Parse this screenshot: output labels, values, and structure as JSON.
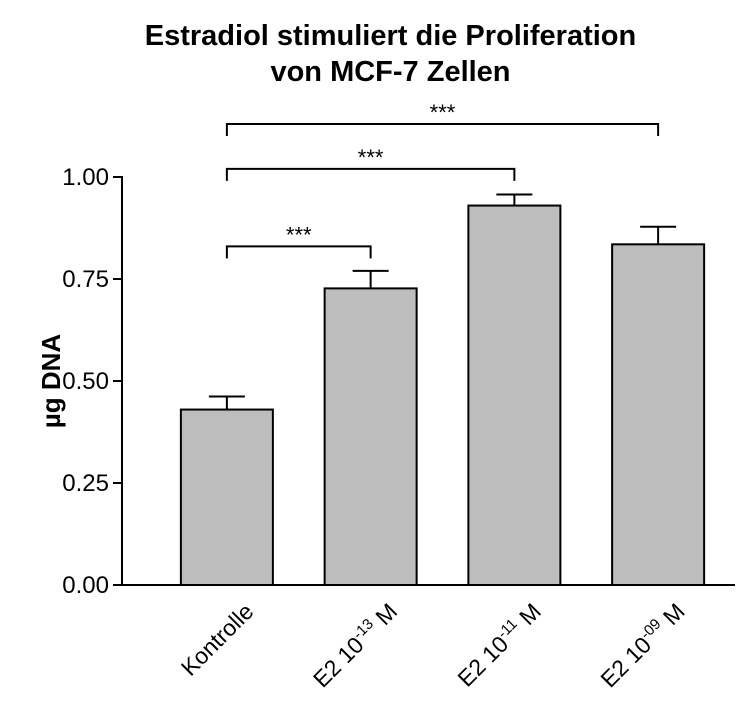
{
  "chart_data": {
    "type": "bar",
    "title_lines": [
      "Estradiol stimuliert die Proliferation",
      "von MCF-7 Zellen"
    ],
    "ylabel": "µg DNA",
    "xlabel": "",
    "ylim": [
      0,
      1.0
    ],
    "yticks": [
      "0.00",
      "0.25",
      "0.50",
      "0.75",
      "1.00"
    ],
    "ytick_values": [
      0,
      0.25,
      0.5,
      0.75,
      1.0
    ],
    "categories": [
      {
        "base": "Kontrolle",
        "exp": "",
        "suffix": ""
      },
      {
        "base": "E2 10",
        "exp": "-13",
        "suffix": " M"
      },
      {
        "base": "E2 10",
        "exp": "-11",
        "suffix": " M"
      },
      {
        "base": "E2 10",
        "exp": "-09",
        "suffix": " M"
      }
    ],
    "values": [
      0.43,
      0.727,
      0.93,
      0.835
    ],
    "errors": [
      0.032,
      0.043,
      0.027,
      0.043
    ],
    "significance": [
      {
        "from": 0,
        "to": 1,
        "label": "***",
        "y": 0.83
      },
      {
        "from": 0,
        "to": 2,
        "label": "***",
        "y": 1.02
      },
      {
        "from": 0,
        "to": 3,
        "label": "***",
        "y": 1.13
      }
    ],
    "bar_color": "#bdbdbd",
    "grid": false
  }
}
